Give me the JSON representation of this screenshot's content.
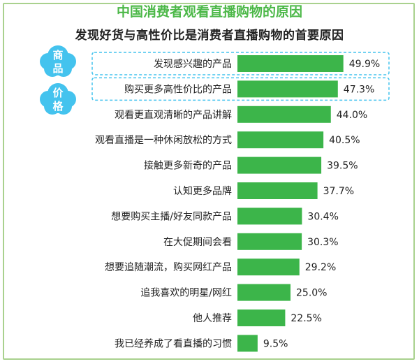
{
  "header": {
    "title": "中国消费者观看直播购物的原因",
    "subtitle": "发现好货与高性价比是消费者直播购物的首要原因"
  },
  "badges": {
    "goods": [
      "商",
      "品"
    ],
    "price": [
      "价",
      "格"
    ]
  },
  "colors": {
    "bar": "#3cb54a",
    "title": "#4cb848",
    "frame": "#a9d18e",
    "cloud": "#44c3ee",
    "highlight_border": "#44c3ee"
  },
  "chart_data": {
    "type": "bar",
    "orientation": "horizontal",
    "categories": [
      "发现感兴趣的产品",
      "购买更多高性价比的产品",
      "观看更直观清晰的产品讲解",
      "观看直播是一种休闲放松的方式",
      "接触更多新奇的产品",
      "认知更多品牌",
      "想要购买主播/好友同款产品",
      "在大促期间会看",
      "想要追随潮流，购买网红产品",
      "追我喜欢的明星/网红",
      "他人推荐",
      "我已经养成了看直播的习惯"
    ],
    "values": [
      49.9,
      47.3,
      44.0,
      40.5,
      39.5,
      37.7,
      30.4,
      30.3,
      29.2,
      25.0,
      22.5,
      9.5
    ],
    "labels": [
      "49.9%",
      "47.3%",
      "44.0%",
      "40.5%",
      "39.5%",
      "37.7%",
      "30.4%",
      "30.3%",
      "29.2%",
      "25.0%",
      "22.5%",
      "9.5%"
    ],
    "highlighted": [
      0,
      1
    ],
    "unit": "%",
    "xlim": [
      0,
      50
    ],
    "grid": false,
    "legend": "none"
  }
}
